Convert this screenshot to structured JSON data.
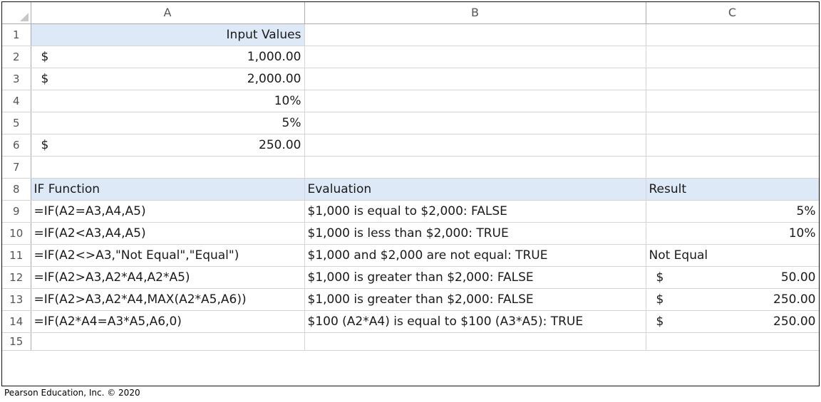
{
  "columns": [
    "A",
    "B",
    "C"
  ],
  "row_numbers": [
    "1",
    "2",
    "3",
    "4",
    "5",
    "6",
    "7",
    "8",
    "9",
    "10",
    "11",
    "12",
    "13",
    "14",
    "15"
  ],
  "rows": [
    {
      "a": "Input Values",
      "b": "",
      "c": ""
    },
    {
      "a_sym": "$",
      "a": "1,000.00",
      "b": "",
      "c": ""
    },
    {
      "a_sym": "$",
      "a": "2,000.00",
      "b": "",
      "c": ""
    },
    {
      "a": "10%",
      "b": "",
      "c": ""
    },
    {
      "a": "5%",
      "b": "",
      "c": ""
    },
    {
      "a_sym": "$",
      "a": "250.00",
      "b": "",
      "c": ""
    },
    {
      "a": "",
      "b": "",
      "c": ""
    },
    {
      "a": "IF Function",
      "b": "Evaluation",
      "c": "Result"
    },
    {
      "a": "=IF(A2=A3,A4,A5)",
      "b": "$1,000 is equal to $2,000: FALSE",
      "c": "5%"
    },
    {
      "a": "=IF(A2<A3,A4,A5)",
      "b": "$1,000 is less than $2,000: TRUE",
      "c": "10%"
    },
    {
      "a": "=IF(A2<>A3,\"Not Equal\",\"Equal\")",
      "b": "$1,000 and $2,000 are not equal: TRUE",
      "c": "Not Equal"
    },
    {
      "a": "=IF(A2>A3,A2*A4,A2*A5)",
      "b": "$1,000 is greater than $2,000: FALSE",
      "c_sym": "$",
      "c": "50.00"
    },
    {
      "a": "=IF(A2>A3,A2*A4,MAX(A2*A5,A6))",
      "b": "$1,000 is greater than $2,000: FALSE",
      "c_sym": "$",
      "c": "250.00"
    },
    {
      "a": "=IF(A2*A4=A3*A5,A6,0)",
      "b": "$100 (A2*A4) is equal to $100 (A3*A5): TRUE",
      "c_sym": "$",
      "c": "250.00"
    },
    {
      "a": "",
      "b": "",
      "c": ""
    }
  ],
  "footer": "Pearson Education, Inc. © 2020",
  "colors": {
    "highlight": "#dde9f6",
    "gridline": "#d4d4d4"
  }
}
